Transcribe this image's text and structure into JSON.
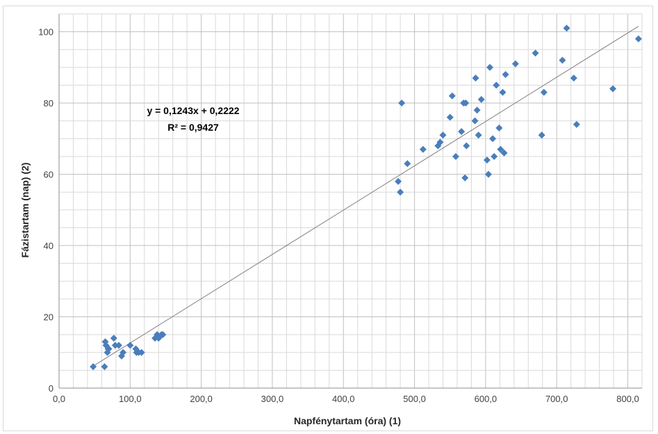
{
  "chart_data": {
    "type": "scatter",
    "xlabel": "Napfénytartam (óra) (1)",
    "ylabel": "Fázistartam (nap) (2)",
    "xlim": [
      0,
      820
    ],
    "ylim": [
      0,
      105
    ],
    "x_ticks": [
      0,
      100,
      200,
      300,
      400,
      500,
      600,
      700,
      800
    ],
    "x_tick_labels": [
      "0,0",
      "100,0",
      "200,0",
      "300,0",
      "400,0",
      "500,0",
      "600,0",
      "700,0",
      "800,0"
    ],
    "y_ticks": [
      0,
      20,
      40,
      60,
      80,
      100
    ],
    "y_tick_labels": [
      "0",
      "20",
      "40",
      "60",
      "80",
      "100"
    ],
    "grid": true,
    "marker_color": "#4a7ebb",
    "trendline_color": "#7f7f7f",
    "trendline": {
      "slope": 0.1243,
      "intercept": 0.2222,
      "x_range": [
        48,
        815
      ]
    },
    "annotation": {
      "equation": "y = 0,1243x + 0,2222",
      "r2": "R² = 0,9427"
    },
    "points": [
      [
        48,
        6
      ],
      [
        64,
        6
      ],
      [
        65,
        13
      ],
      [
        66,
        12
      ],
      [
        68,
        10
      ],
      [
        69,
        11
      ],
      [
        70,
        11
      ],
      [
        77,
        14
      ],
      [
        79,
        12
      ],
      [
        84,
        12
      ],
      [
        88,
        9
      ],
      [
        90,
        10
      ],
      [
        100,
        12
      ],
      [
        108,
        11
      ],
      [
        109,
        10
      ],
      [
        112,
        10
      ],
      [
        116,
        10
      ],
      [
        135,
        14
      ],
      [
        138,
        15
      ],
      [
        140,
        14
      ],
      [
        144,
        15
      ],
      [
        146,
        15
      ],
      [
        477,
        58
      ],
      [
        480,
        55
      ],
      [
        482,
        80
      ],
      [
        490,
        63
      ],
      [
        512,
        67
      ],
      [
        533,
        68
      ],
      [
        536,
        69
      ],
      [
        540,
        71
      ],
      [
        550,
        76
      ],
      [
        553,
        82
      ],
      [
        558,
        65
      ],
      [
        566,
        72
      ],
      [
        569,
        80
      ],
      [
        571,
        59
      ],
      [
        572,
        80
      ],
      [
        573,
        68
      ],
      [
        585,
        75
      ],
      [
        586,
        87
      ],
      [
        588,
        78
      ],
      [
        590,
        71
      ],
      [
        594,
        81
      ],
      [
        602,
        64
      ],
      [
        604,
        60
      ],
      [
        606,
        90
      ],
      [
        610,
        70
      ],
      [
        612,
        65
      ],
      [
        615,
        85
      ],
      [
        619,
        73
      ],
      [
        621,
        67
      ],
      [
        624,
        83
      ],
      [
        626,
        66
      ],
      [
        628,
        88
      ],
      [
        642,
        91
      ],
      [
        670,
        94
      ],
      [
        679,
        71
      ],
      [
        682,
        83
      ],
      [
        708,
        92
      ],
      [
        714,
        101
      ],
      [
        724,
        87
      ],
      [
        728,
        74
      ],
      [
        779,
        84
      ],
      [
        815,
        98
      ]
    ]
  }
}
